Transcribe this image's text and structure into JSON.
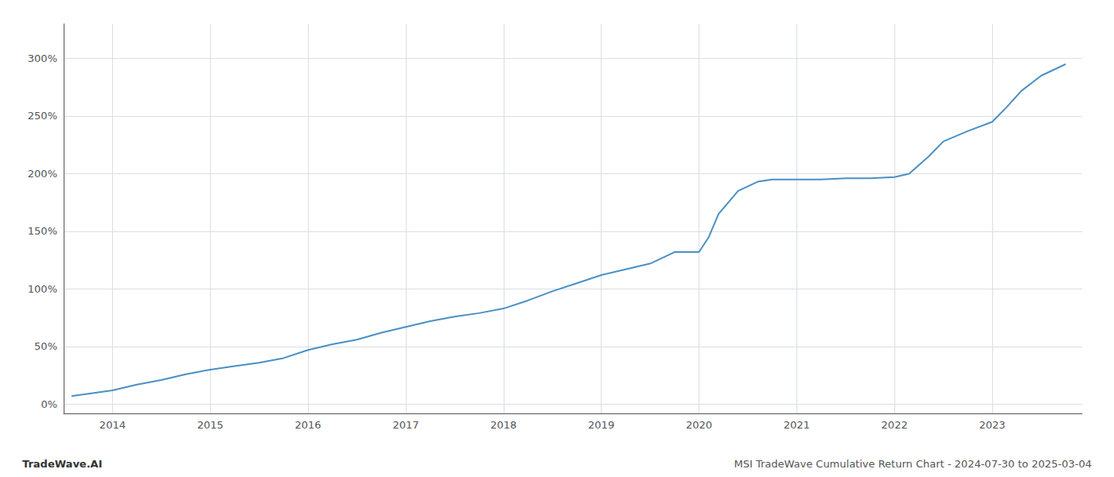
{
  "chart_data": {
    "type": "line",
    "x": [
      2013.58,
      2014.0,
      2014.25,
      2014.5,
      2014.75,
      2015.0,
      2015.25,
      2015.5,
      2015.75,
      2016.0,
      2016.25,
      2016.5,
      2016.75,
      2017.0,
      2017.25,
      2017.5,
      2017.75,
      2018.0,
      2018.25,
      2018.5,
      2018.75,
      2019.0,
      2019.25,
      2019.5,
      2019.75,
      2020.0,
      2020.1,
      2020.2,
      2020.4,
      2020.6,
      2020.75,
      2021.0,
      2021.25,
      2021.5,
      2021.75,
      2022.0,
      2022.15,
      2022.35,
      2022.5,
      2022.75,
      2023.0,
      2023.15,
      2023.3,
      2023.5,
      2023.75
    ],
    "values": [
      7,
      12,
      17,
      21,
      26,
      30,
      33,
      36,
      40,
      47,
      52,
      56,
      62,
      67,
      72,
      76,
      79,
      83,
      90,
      98,
      105,
      112,
      117,
      122,
      132,
      132,
      145,
      165,
      185,
      193,
      195,
      195,
      195,
      196,
      196,
      197,
      200,
      215,
      228,
      237,
      245,
      258,
      272,
      285,
      295
    ],
    "color": "#4a90c4",
    "xlim": [
      2013.5,
      2023.92
    ],
    "xticks": [
      2014,
      2015,
      2016,
      2017,
      2018,
      2019,
      2020,
      2021,
      2022,
      2023
    ],
    "ylim": [
      -8,
      330
    ],
    "yticks": [
      {
        "value": 0,
        "label": "0%"
      },
      {
        "value": 50,
        "label": "50%"
      },
      {
        "value": 100,
        "label": "100%"
      },
      {
        "value": 150,
        "label": "150%"
      },
      {
        "value": 200,
        "label": "200%"
      },
      {
        "value": 250,
        "label": "250%"
      },
      {
        "value": 300,
        "label": "300%"
      }
    ],
    "grid": true,
    "annotations": [
      "TradeWave.AI",
      "MSI TradeWave Cumulative Return Chart - 2024-07-30 to 2025-03-04"
    ]
  }
}
